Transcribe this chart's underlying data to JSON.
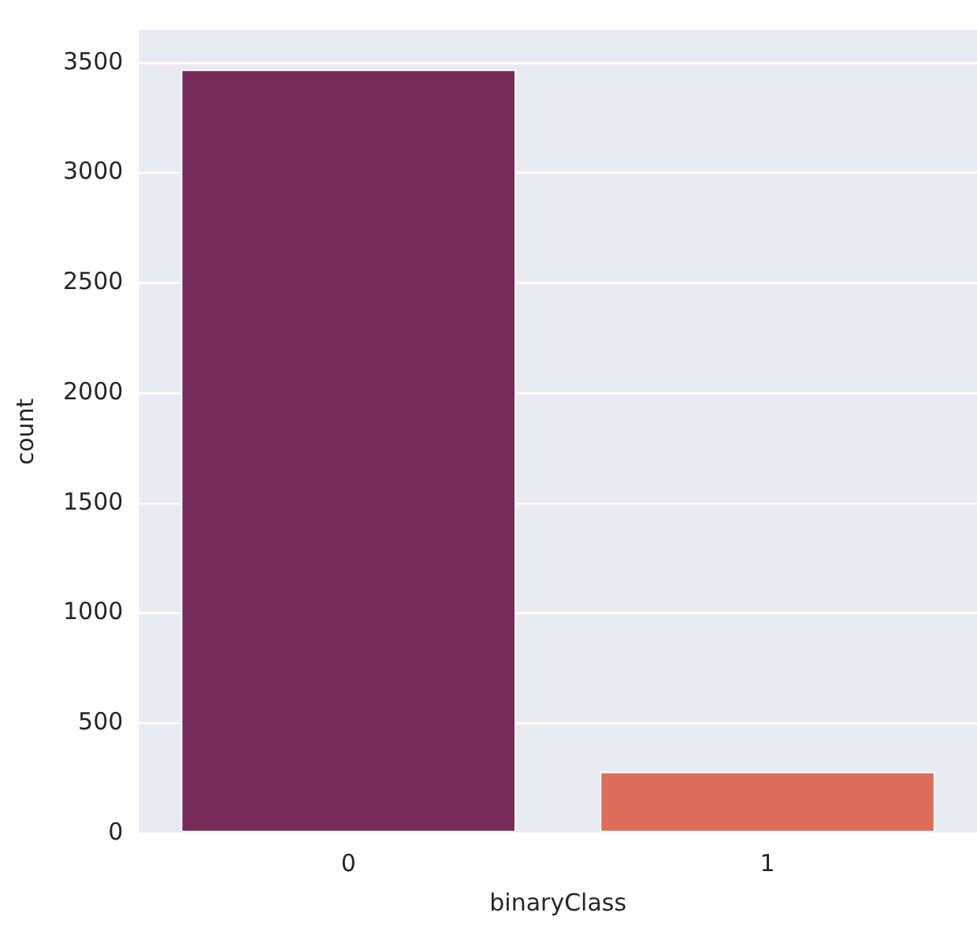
{
  "chart_data": {
    "type": "bar",
    "xlabel": "binaryClass",
    "ylabel": "count",
    "categories": [
      "0",
      "1"
    ],
    "values": [
      3470,
      280
    ],
    "colors": [
      "#772b57",
      "#dd6d5a"
    ],
    "ylim": [
      0,
      3650
    ],
    "yticks": [
      0,
      500,
      1000,
      1500,
      2000,
      2500,
      3000,
      3500
    ],
    "grid": "y"
  }
}
